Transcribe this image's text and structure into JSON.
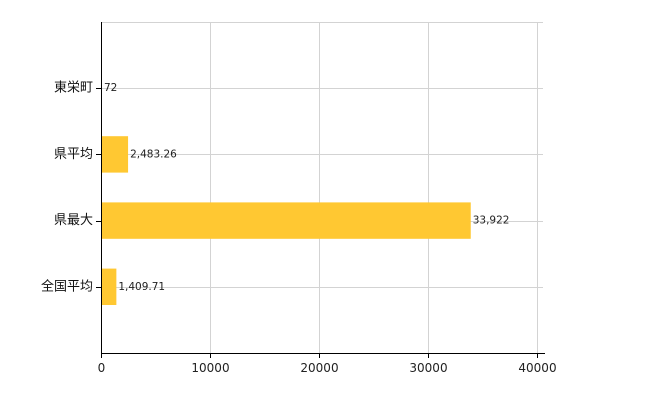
{
  "chart_data": {
    "type": "bar",
    "orientation": "horizontal",
    "title": "",
    "xlabel": "",
    "ylabel": "",
    "categories": [
      "東栄町",
      "県平均",
      "県最大",
      "全国平均"
    ],
    "values": [
      72,
      2483.26,
      33922,
      1409.71
    ],
    "data_labels": [
      "72",
      "2,483.26",
      "33,922",
      "1,409.71"
    ],
    "xlim": [
      0,
      40000
    ],
    "xticks": [
      0,
      10000,
      20000,
      30000,
      40000
    ],
    "xtick_labels": [
      "0",
      "10000",
      "20000",
      "30000",
      "40000"
    ],
    "grid": true,
    "legend": "none",
    "bar_color": "#FFC832",
    "grid_color": "#D3D3D3",
    "axis_color": "#000000"
  }
}
